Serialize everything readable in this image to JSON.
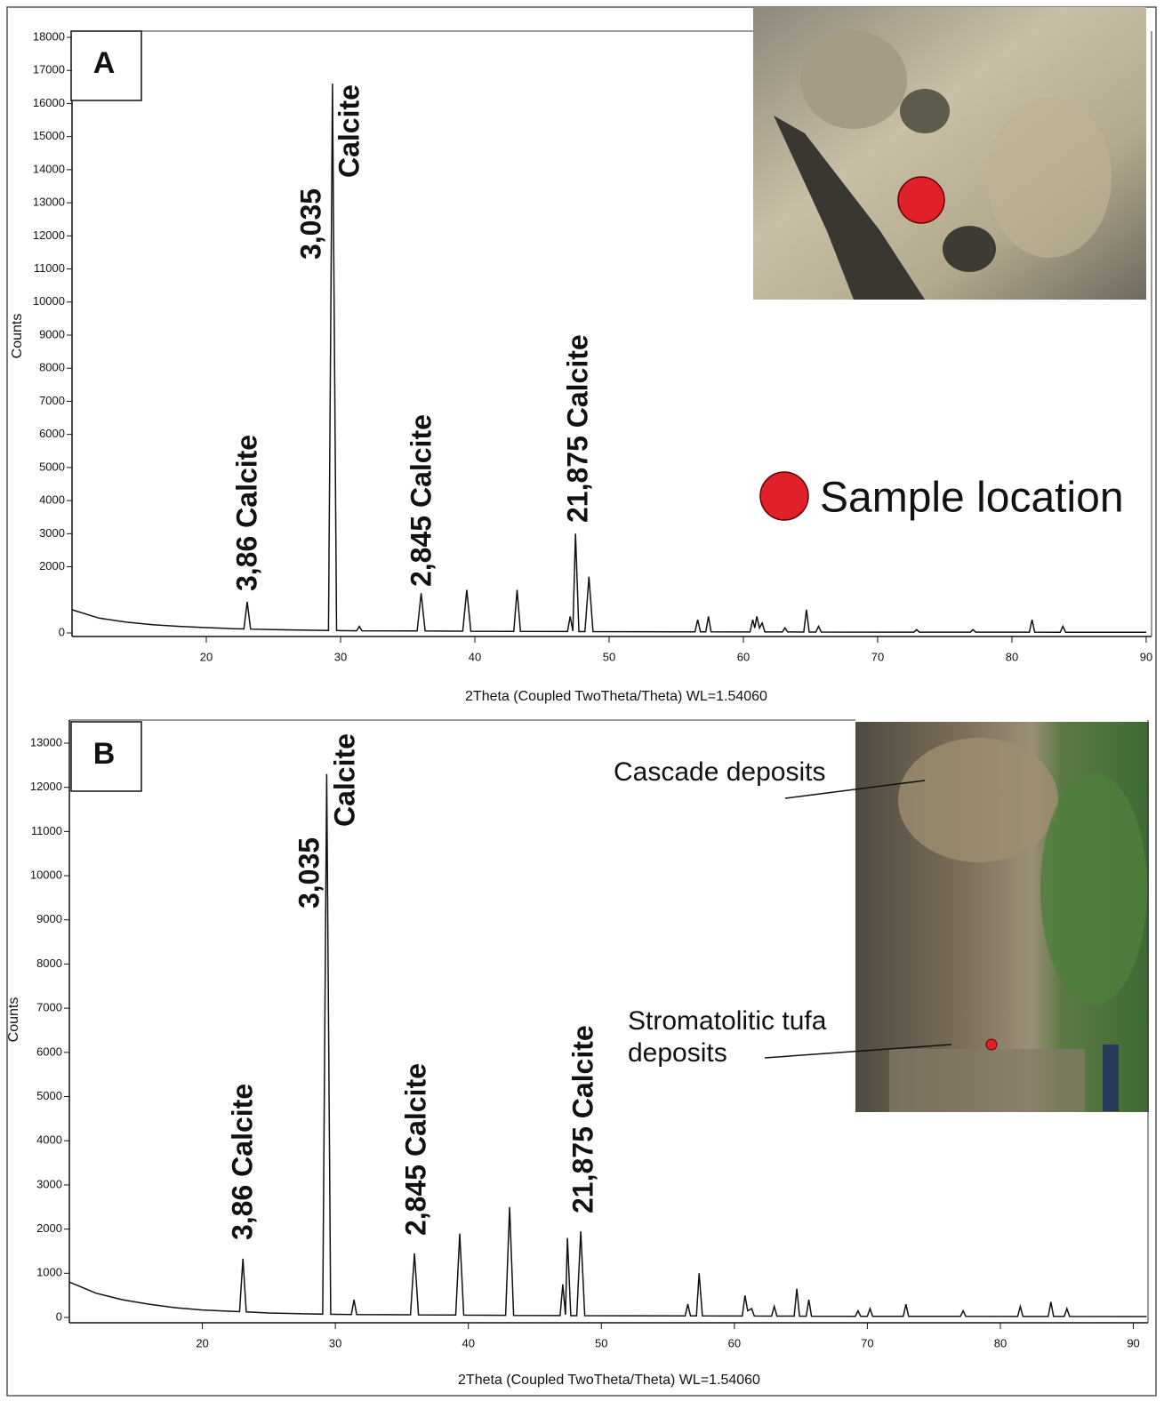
{
  "chart_data": [
    {
      "type": "line",
      "panel_label": "A",
      "y_label": "Counts",
      "x_label": "2Theta (Coupled TwoTheta/Theta) WL=1.54060",
      "xlim": [
        10,
        90.4
      ],
      "ylim": [
        0,
        18000
      ],
      "xticks": [
        20,
        30,
        40,
        50,
        60,
        70,
        80,
        90
      ],
      "yticks": [
        0,
        2000,
        3000,
        4000,
        5000,
        6000,
        7000,
        8000,
        9000,
        10000,
        11000,
        12000,
        13000,
        14000,
        15000,
        16000,
        17000,
        18000
      ],
      "x": [
        10,
        12,
        14,
        16,
        18,
        20,
        22,
        22.8,
        23.05,
        23.3,
        25,
        28,
        29.1,
        29.4,
        29.7,
        31.2,
        31.4,
        31.6,
        35.7,
        36.0,
        36.3,
        39.1,
        39.4,
        39.7,
        42.9,
        43.15,
        43.4,
        46.9,
        47.1,
        47.3,
        47.5,
        47.75,
        48.2,
        48.5,
        48.8,
        56.4,
        56.6,
        56.8,
        57.2,
        57.4,
        57.6,
        60.5,
        60.7,
        60.85,
        61.0,
        61.2,
        61.4,
        61.6,
        62.9,
        63.1,
        63.3,
        64.5,
        64.7,
        64.9,
        65.4,
        65.6,
        65.8,
        72.7,
        72.9,
        73.1,
        76.9,
        77.1,
        77.3,
        81.3,
        81.5,
        81.7,
        83.6,
        83.8,
        84.0,
        90
      ],
      "series": [
        {
          "color": "#111111",
          "values": [
            700,
            450,
            330,
            250,
            200,
            160,
            130,
            120,
            940,
            115,
            100,
            80,
            75,
            16600,
            72,
            65,
            200,
            65,
            60,
            1200,
            58,
            55,
            1300,
            52,
            48,
            1300,
            46,
            42,
            500,
            60,
            3000,
            40,
            40,
            1700,
            40,
            32,
            400,
            32,
            32,
            500,
            32,
            30,
            400,
            150,
            500,
            150,
            300,
            30,
            30,
            150,
            30,
            28,
            700,
            28,
            28,
            200,
            28,
            25,
            100,
            25,
            24,
            100,
            24,
            23,
            400,
            23,
            22,
            200,
            22,
            20
          ]
        }
      ],
      "annotations": [
        "3,86 Calcite",
        "3,035",
        "Calcite",
        "2,845 Calcite",
        "21,875 Calcite"
      ],
      "photo_labels": [
        "Sample location"
      ]
    },
    {
      "type": "line",
      "panel_label": "B",
      "y_label": "Counts",
      "x_label": "2Theta (Coupled TwoTheta/Theta) WL=1.54060",
      "xlim": [
        10,
        91.1
      ],
      "ylim": [
        0,
        13000
      ],
      "xticks": [
        20,
        30,
        40,
        50,
        60,
        70,
        80,
        90
      ],
      "yticks": [
        0,
        1000,
        2000,
        3000,
        4000,
        5000,
        6000,
        7000,
        8000,
        9000,
        10000,
        11000,
        12000,
        13000
      ],
      "x": [
        10,
        12,
        14,
        16,
        18,
        20,
        22,
        22.8,
        23.05,
        23.3,
        25,
        28,
        29.05,
        29.35,
        29.65,
        31.2,
        31.4,
        31.6,
        35.65,
        35.95,
        36.25,
        39.05,
        39.35,
        39.65,
        42.8,
        43.1,
        43.4,
        46.9,
        47.1,
        47.3,
        47.45,
        47.7,
        48.15,
        48.45,
        48.75,
        56.3,
        56.5,
        56.7,
        57.15,
        57.35,
        57.6,
        60.6,
        60.8,
        61.0,
        61.3,
        61.5,
        62.8,
        63.0,
        63.2,
        64.5,
        64.7,
        64.9,
        65.4,
        65.6,
        65.8,
        69.1,
        69.3,
        69.5,
        70.0,
        70.2,
        70.4,
        72.7,
        72.9,
        73.1,
        77.0,
        77.2,
        77.4,
        81.3,
        81.5,
        81.7,
        83.6,
        83.8,
        84.0,
        84.8,
        85.0,
        85.2,
        91
      ],
      "series": [
        {
          "color": "#111111",
          "values": [
            800,
            550,
            400,
            300,
            220,
            170,
            140,
            130,
            1330,
            125,
            100,
            80,
            75,
            12300,
            72,
            65,
            400,
            65,
            60,
            1450,
            58,
            55,
            1900,
            52,
            48,
            2500,
            46,
            42,
            750,
            60,
            1800,
            40,
            40,
            1950,
            40,
            35,
            300,
            35,
            35,
            1000,
            35,
            32,
            500,
            150,
            200,
            32,
            30,
            250,
            30,
            30,
            650,
            30,
            28,
            400,
            28,
            26,
            150,
            26,
            26,
            200,
            26,
            25,
            300,
            25,
            24,
            150,
            24,
            23,
            250,
            23,
            22,
            350,
            22,
            22,
            200,
            22,
            20
          ]
        }
      ],
      "annotations": [
        "3,86 Calcite",
        "3,035",
        "Calcite",
        "2,845 Calcite",
        "21,875 Calcite"
      ],
      "photo_labels": [
        "Cascade deposits",
        "Stromatolitic tufa",
        "deposits"
      ]
    }
  ]
}
